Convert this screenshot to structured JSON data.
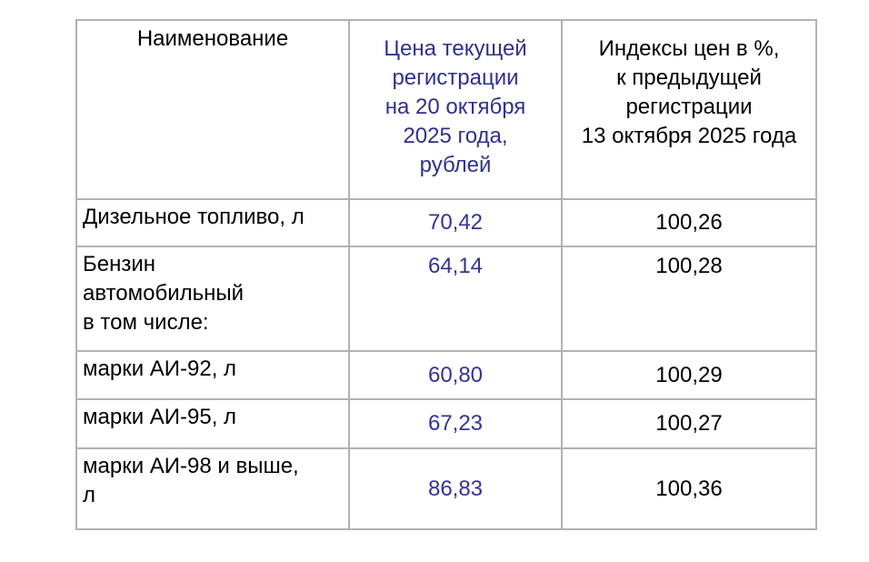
{
  "table": {
    "headers": {
      "name": "Наименование",
      "price": "Цена текущей\nрегистрации\nна 20 октября\n2025 года,\nрублей",
      "index": "Индексы цен в %,\nк предыдущей\nрегистрации\n13 октября 2025 года"
    },
    "rows": [
      {
        "name": "Дизельное топливо, л",
        "price": "70,42",
        "index": "100,26"
      },
      {
        "name": "Бензин\nавтомобильный\nв том числе:",
        "price": "64,14",
        "index": "100,28"
      },
      {
        "name": "марки АИ-92, л",
        "price": "60,80",
        "index": "100,29"
      },
      {
        "name": "марки АИ-95, л",
        "price": "67,23",
        "index": "100,27"
      },
      {
        "name": "марки АИ-98 и выше,\nл",
        "price": "86,83",
        "index": "100,36"
      }
    ]
  },
  "colors": {
    "header_price_text": "#2e3192",
    "price_value_text": "#333399",
    "border": "#b2b2b2",
    "body_text": "#000000",
    "background": "#ffffff"
  }
}
